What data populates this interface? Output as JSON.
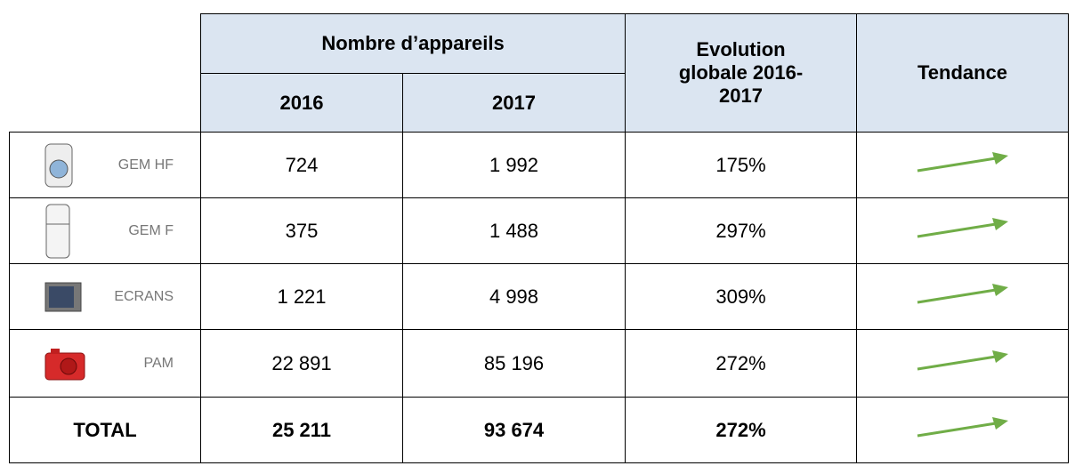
{
  "header": {
    "group": "Nombre d’appareils",
    "years": [
      "2016",
      "2017"
    ],
    "evolution": "Evolution globale 2016-2017",
    "trend": "Tendance"
  },
  "rows": [
    {
      "label": "GEM HF",
      "y2016": "724",
      "y2017": "1 992",
      "evolution": "175%"
    },
    {
      "label": "GEM F",
      "y2016": "375",
      "y2017": "1 488",
      "evolution": "297%"
    },
    {
      "label": "ECRANS",
      "y2016": "1 221",
      "y2017": "4 998",
      "evolution": "309%"
    },
    {
      "label": "PAM",
      "y2016": "22 891",
      "y2017": "85 196",
      "evolution": "272%"
    }
  ],
  "total": {
    "label": "TOTAL",
    "y2016": "25 211",
    "y2017": "93 674",
    "evolution": "272%"
  }
}
